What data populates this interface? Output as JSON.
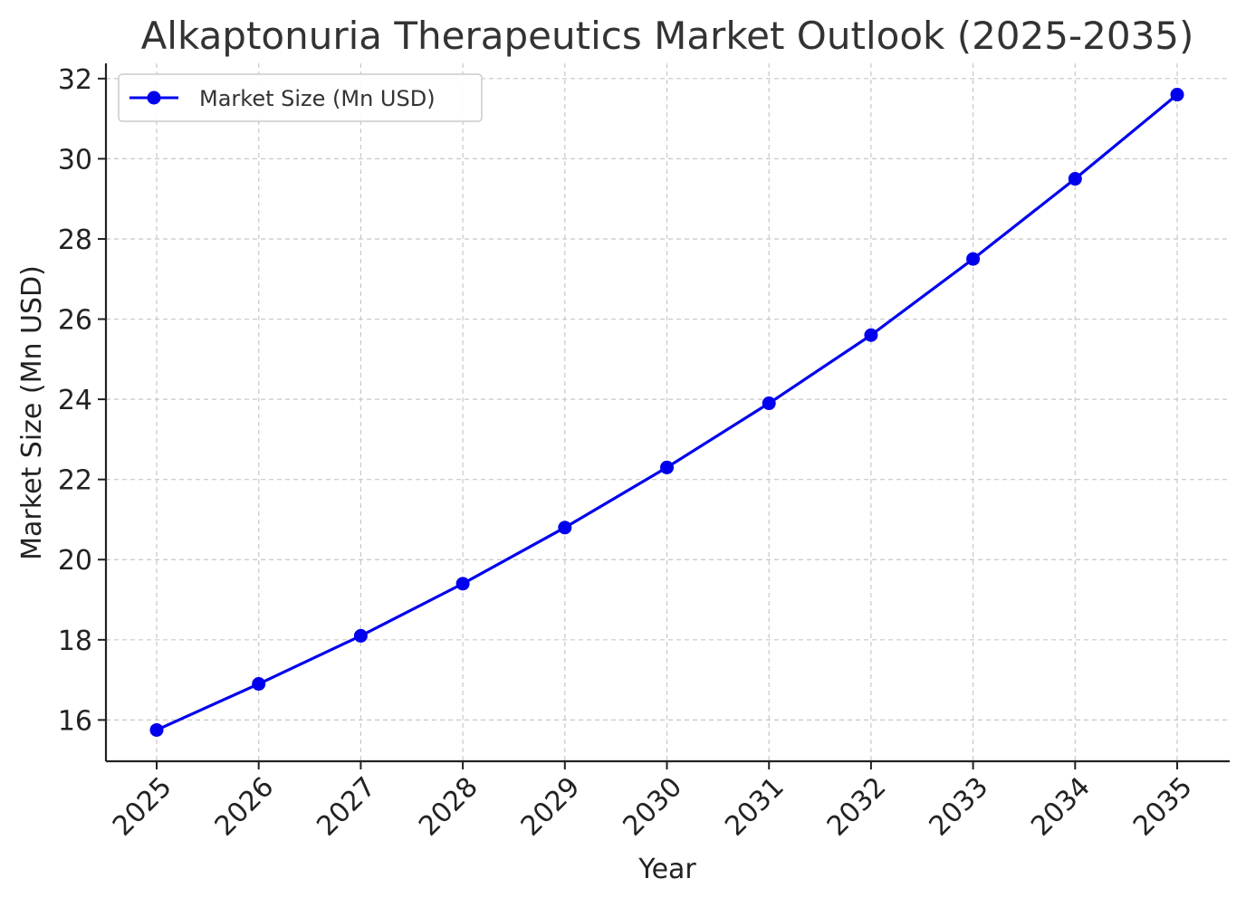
{
  "chart_data": {
    "type": "line",
    "title": "Alkaptonuria Therapeutics Market Outlook (2025-2035)",
    "xlabel": "Year",
    "ylabel": "Market Size (Mn USD)",
    "x": [
      "2025",
      "2026",
      "2027",
      "2028",
      "2029",
      "2030",
      "2031",
      "2032",
      "2033",
      "2034",
      "2035"
    ],
    "ylim": [
      14.97,
      32.38
    ],
    "yticks": [
      16,
      18,
      20,
      22,
      24,
      26,
      28,
      30,
      32
    ],
    "grid": true,
    "grid_style": "dashed",
    "legend_position": "top-left",
    "series": [
      {
        "name": "Market Size (Mn USD)",
        "color": "#0000ee",
        "marker": "circle",
        "values": [
          15.75,
          16.9,
          18.1,
          19.4,
          20.8,
          22.3,
          23.9,
          25.6,
          27.5,
          29.5,
          31.6
        ]
      }
    ]
  }
}
